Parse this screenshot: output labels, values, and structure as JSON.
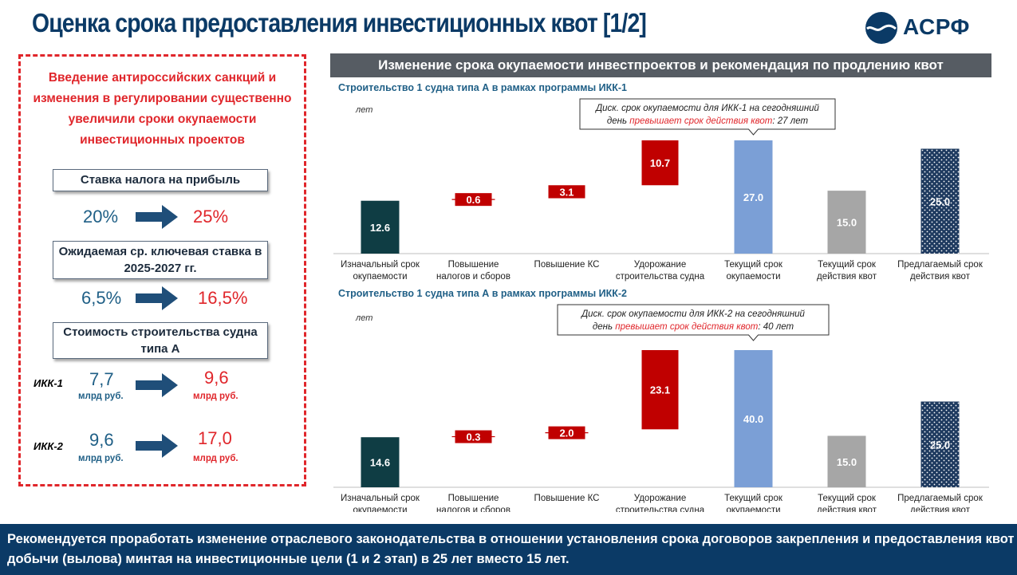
{
  "page_title": "Оценка срока предоставления инвестиционных квот [1/2]",
  "logo": {
    "text": "АСРФ",
    "icon": "fish-wave-logo-icon"
  },
  "left_panel": {
    "heading_lines": [
      "Введение антироссийских санкций и",
      "изменения в регулировании существенно",
      "увеличили сроки окупаемости",
      "инвестиционных проектов"
    ],
    "tax": {
      "label": "Ставка налога на прибыль",
      "from": "20%",
      "to": "25%"
    },
    "key_rate": {
      "label_line1": "Ожидаемая ср. ключевая ставка в",
      "label_line2": "2025-2027 гг.",
      "from": "6,5%",
      "to": "16,5%"
    },
    "ship_cost": {
      "label_line1": "Стоимость строительства судна",
      "label_line2": "типа А",
      "rows": [
        {
          "label": "ИКК-1",
          "from": "7,7",
          "to": "9,6",
          "unit": "млрд руб."
        },
        {
          "label": "ИКК-2",
          "from": "9,6",
          "to": "17,0",
          "unit": "млрд руб."
        }
      ]
    }
  },
  "chart_banner": "Изменение срока окупаемости инвестпроектов и рекомендация по продлению квот",
  "colors": {
    "dark_teal": "#0f3d44",
    "red": "#c00000",
    "blue": "#7b9fd6",
    "gray": "#a6a6a6",
    "navy_dotted": "#1e3a5f"
  },
  "chart_data": [
    {
      "type": "bar",
      "subtitle": "Строительство 1 судна типа А в рамках программы ИКК-1",
      "ylabel": "лет",
      "callout_prefix": "Диск. срок окупаемости для ИКК-1 на сегодняшний",
      "callout_mid": "день ",
      "callout_red": "превышает срок действия квот",
      "callout_suffix": ": 27 лет",
      "categories": [
        [
          "Изначальный срок",
          "окупаемости"
        ],
        [
          "Повышение",
          "налогов и сборов"
        ],
        [
          "Повышение КС"
        ],
        [
          "Удорожание",
          "строительства судна"
        ],
        [
          "Текущий срок",
          "окупаемости"
        ],
        [
          "Текущий срок",
          "действия квот"
        ],
        [
          "Предлагаемый срок",
          "действия квот"
        ]
      ],
      "values": [
        12.6,
        0.6,
        3.1,
        10.7,
        27.0,
        15.0,
        25.0
      ],
      "labels": [
        "12.6",
        "0.6",
        "3.1",
        "10.7",
        "27.0",
        "15.0",
        "25.0"
      ],
      "bar_kinds": [
        "total",
        "delta",
        "delta",
        "delta",
        "total",
        "total",
        "total"
      ],
      "bar_colors": [
        "#0f3d44",
        "#c00000",
        "#c00000",
        "#c00000",
        "#7b9fd6",
        "#a6a6a6",
        "#1e3a5f"
      ],
      "ylim": [
        0,
        27
      ]
    },
    {
      "type": "bar",
      "subtitle": "Строительство 1 судна типа А в рамках программы ИКК-2",
      "ylabel": "лет",
      "callout_prefix": "Диск. срок окупаемости для ИКК-2 на сегодняшний",
      "callout_mid": "день ",
      "callout_red": "превышает срок действия квот",
      "callout_suffix": ": 40 лет",
      "categories": [
        [
          "Изначальный срок",
          "окупаемости"
        ],
        [
          "Повышение",
          "налогов и сборов"
        ],
        [
          "Повышение КС"
        ],
        [
          "Удорожание",
          "строительства судна"
        ],
        [
          "Текущий срок",
          "окупаемости"
        ],
        [
          "Текущий срок",
          "действия квот"
        ],
        [
          "Предлагаемый срок",
          "действия квот"
        ]
      ],
      "values": [
        14.6,
        0.3,
        2.0,
        23.1,
        40.0,
        15.0,
        25.0
      ],
      "labels": [
        "14.6",
        "0.3",
        "2.0",
        "23.1",
        "40.0",
        "15.0",
        "25.0"
      ],
      "bar_kinds": [
        "total",
        "delta",
        "delta",
        "delta",
        "total",
        "total",
        "total"
      ],
      "bar_colors": [
        "#0f3d44",
        "#c00000",
        "#c00000",
        "#c00000",
        "#7b9fd6",
        "#a6a6a6",
        "#1e3a5f"
      ],
      "ylim": [
        0,
        40
      ]
    }
  ],
  "bottom_banner": "Рекомендуется проработать изменение отраслевого законодательства в отношении установления срока договоров закрепления и предоставления квот добычи (вылова) минтая на инвестиционные цели (1 и 2 этап) в 25 лет вместо 15 лет."
}
